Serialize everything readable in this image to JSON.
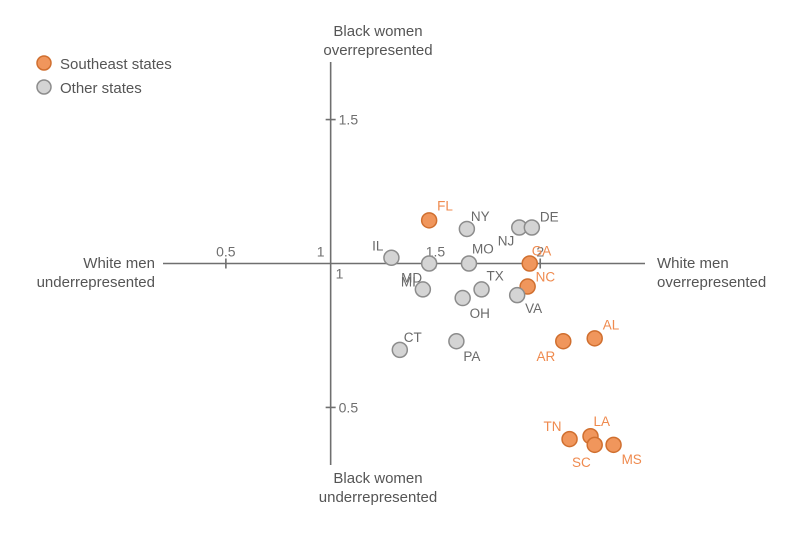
{
  "colors": {
    "southeast": "#f0965c",
    "southeast_stroke": "#d06f2f",
    "other": "#d4d4d4",
    "other_stroke": "#8c8c8c",
    "southeast_label": "#ef8a4e",
    "other_label": "#6a6a6a",
    "axis": "#6f6f6f"
  },
  "legend": {
    "southeast": "Southeast states",
    "other": "Other states"
  },
  "axis_titles": {
    "y_top": [
      "Black women",
      "overrepresented"
    ],
    "y_bottom": [
      "Black women",
      "underrepresented"
    ],
    "x_left": [
      "White men",
      "underrepresented"
    ],
    "x_right": [
      "White men",
      "overrepresented"
    ]
  },
  "chart_data": {
    "type": "scatter",
    "xlim": [
      0.2,
      2.5
    ],
    "ylim": [
      0.3,
      1.7
    ],
    "cross_at": {
      "x": 1,
      "y": 1
    },
    "x_ticks": [
      {
        "value": 0.5,
        "label": "0.5"
      },
      {
        "value": 1,
        "label": "1"
      },
      {
        "value": 1.5,
        "label": "1.5"
      },
      {
        "value": 2,
        "label": "2"
      }
    ],
    "y_ticks": [
      {
        "value": 1.5,
        "label": "1.5"
      },
      {
        "value": 1,
        "label": "1"
      },
      {
        "value": 0.5,
        "label": "0.5"
      }
    ],
    "series": [
      {
        "name": "Southeast states",
        "group": "southeast",
        "points": [
          {
            "label": "FL",
            "x": 1.47,
            "y": 1.15
          },
          {
            "label": "GA",
            "x": 1.95,
            "y": 1.0
          },
          {
            "label": "NC",
            "x": 1.94,
            "y": 0.92
          },
          {
            "label": "AL",
            "x": 2.26,
            "y": 0.74
          },
          {
            "label": "AR",
            "x": 2.11,
            "y": 0.73
          },
          {
            "label": "TN",
            "x": 2.14,
            "y": 0.39
          },
          {
            "label": "LA",
            "x": 2.24,
            "y": 0.4
          },
          {
            "label": "SC",
            "x": 2.26,
            "y": 0.37
          },
          {
            "label": "MS",
            "x": 2.35,
            "y": 0.37
          }
        ]
      },
      {
        "name": "Other states",
        "group": "other",
        "points": [
          {
            "label": "NY",
            "x": 1.65,
            "y": 1.12
          },
          {
            "label": "NJ",
            "x": 1.9,
            "y": 1.125
          },
          {
            "label": "DE",
            "x": 1.96,
            "y": 1.125
          },
          {
            "label": "IL",
            "x": 1.29,
            "y": 1.02
          },
          {
            "label": "MD",
            "x": 1.47,
            "y": 1.0
          },
          {
            "label": "MO",
            "x": 1.66,
            "y": 1.0
          },
          {
            "label": "MI",
            "x": 1.44,
            "y": 0.91
          },
          {
            "label": "TX",
            "x": 1.72,
            "y": 0.91
          },
          {
            "label": "OH",
            "x": 1.63,
            "y": 0.88
          },
          {
            "label": "VA",
            "x": 1.89,
            "y": 0.89
          },
          {
            "label": "CT",
            "x": 1.33,
            "y": 0.7
          },
          {
            "label": "PA",
            "x": 1.6,
            "y": 0.73
          }
        ]
      }
    ]
  }
}
